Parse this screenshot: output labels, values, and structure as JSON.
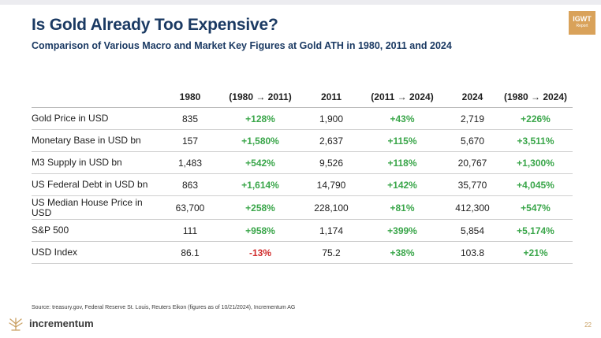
{
  "slide": {
    "title": "Is Gold Already Too Expensive?",
    "subtitle": "Comparison of Various Macro and Market Key Figures at Gold ATH in 1980, 2011 and 2024",
    "badge": {
      "line1": "IGWT",
      "line2": "Report"
    },
    "source": "Source: treasury.gov, Federal Reserve St. Louis, Reuters Eikon (figures as of 10/21/2024), Incrementum AG",
    "brand": "incrementum",
    "page_number": "22",
    "colors": {
      "title": "#1b3a63",
      "positive": "#3aa64a",
      "negative": "#d02b2b",
      "brand_gold": "#d9a25a"
    }
  },
  "table": {
    "headers": [
      "",
      "1980",
      "(1980 → 2011)",
      "2011",
      "(2011 → 2024)",
      "2024",
      "(1980 → 2024)"
    ],
    "rows": [
      {
        "label": "Gold Price in USD",
        "v1980": "835",
        "c1": "+128%",
        "v2011": "1,900",
        "c2": "+43%",
        "v2024": "2,719",
        "c3": "+226%"
      },
      {
        "label": "Monetary Base in USD bn",
        "v1980": "157",
        "c1": "+1,580%",
        "v2011": "2,637",
        "c2": "+115%",
        "v2024": "5,670",
        "c3": "+3,511%"
      },
      {
        "label": "M3 Supply in USD bn",
        "v1980": "1,483",
        "c1": "+542%",
        "v2011": "9,526",
        "c2": "+118%",
        "v2024": "20,767",
        "c3": "+1,300%"
      },
      {
        "label": "US Federal Debt in USD bn",
        "v1980": "863",
        "c1": "+1,614%",
        "v2011": "14,790",
        "c2": "+142%",
        "v2024": "35,770",
        "c3": "+4,045%"
      },
      {
        "label": "US Median House Price in USD",
        "v1980": "63,700",
        "c1": "+258%",
        "v2011": "228,100",
        "c2": "+81%",
        "v2024": "412,300",
        "c3": "+547%"
      },
      {
        "label": "S&P 500",
        "v1980": "111",
        "c1": "+958%",
        "v2011": "1,174",
        "c2": "+399%",
        "v2024": "5,854",
        "c3": "+5,174%"
      },
      {
        "label": "USD Index",
        "v1980": "86.1",
        "c1": "-13%",
        "v2011": "75.2",
        "c2": "+38%",
        "v2024": "103.8",
        "c3": "+21%"
      }
    ]
  }
}
